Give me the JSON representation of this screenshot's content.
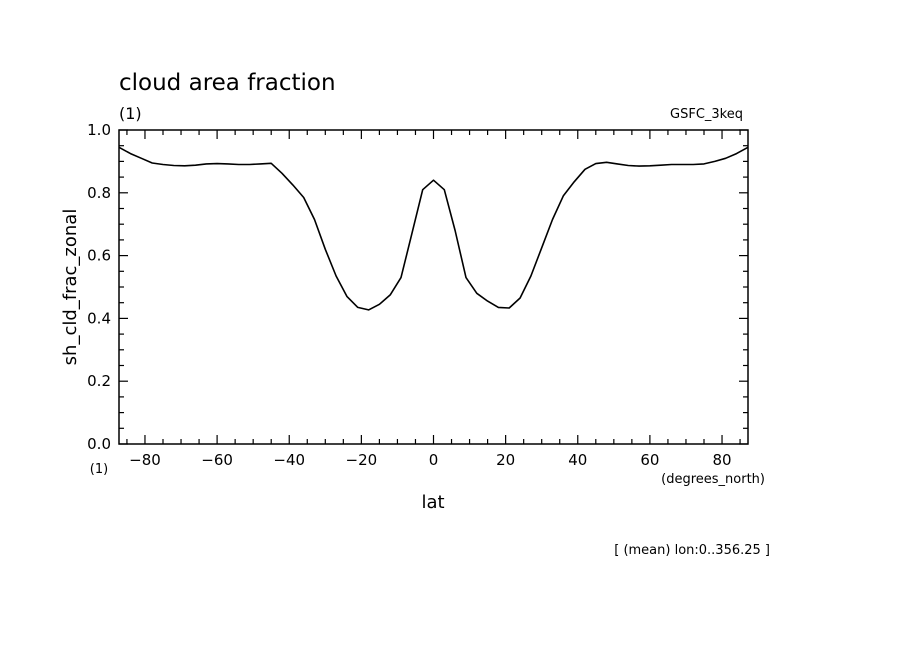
{
  "chart_data": {
    "type": "line",
    "title": "cloud area fraction",
    "units": "(1)",
    "model_label": "GSFC_3keq",
    "xlabel": "lat",
    "x_units": "(degrees_north)",
    "ylabel": "sh_cld_frac_zonal",
    "y_units": "(1)",
    "footer": "[ (mean) lon:0..356.25 ]",
    "xlim": [
      -87.2,
      87.2
    ],
    "ylim": [
      0,
      1
    ],
    "x_ticks": [
      -80,
      -60,
      -40,
      -20,
      0,
      20,
      40,
      60,
      80
    ],
    "x_tick_labels": [
      "−80",
      "−60",
      "−40",
      "−20",
      "0",
      "20",
      "40",
      "60",
      "80"
    ],
    "y_ticks": [
      0,
      0.2,
      0.4,
      0.6,
      0.8,
      1.0
    ],
    "y_tick_labels": [
      "0.0",
      "0.2",
      "0.4",
      "0.6",
      "0.8",
      "1.0"
    ],
    "grid": false,
    "series": [
      {
        "x": [
          -87.2,
          -84,
          -81,
          -78,
          -75,
          -72,
          -69,
          -66,
          -63,
          -60,
          -57,
          -54,
          -51,
          -48,
          -45,
          -42,
          -39,
          -36,
          -33,
          -30,
          -27,
          -24,
          -21,
          -18,
          -15,
          -12,
          -9,
          -6,
          -3,
          0,
          3,
          6,
          9,
          12,
          15,
          18,
          21,
          24,
          27,
          30,
          33,
          36,
          39,
          42,
          45,
          48,
          51,
          54,
          57,
          60,
          63,
          66,
          69,
          72,
          75,
          78,
          81,
          84,
          87.2
        ],
        "values": [
          0.945,
          0.925,
          0.91,
          0.895,
          0.89,
          0.887,
          0.886,
          0.888,
          0.892,
          0.893,
          0.892,
          0.89,
          0.89,
          0.892,
          0.894,
          0.862,
          0.825,
          0.785,
          0.715,
          0.62,
          0.535,
          0.47,
          0.435,
          0.427,
          0.445,
          0.475,
          0.53,
          0.67,
          0.81,
          0.84,
          0.81,
          0.68,
          0.53,
          0.48,
          0.455,
          0.435,
          0.433,
          0.465,
          0.535,
          0.625,
          0.715,
          0.79,
          0.835,
          0.875,
          0.893,
          0.897,
          0.892,
          0.887,
          0.885,
          0.886,
          0.888,
          0.89,
          0.89,
          0.89,
          0.892,
          0.9,
          0.91,
          0.925,
          0.945
        ]
      }
    ]
  }
}
